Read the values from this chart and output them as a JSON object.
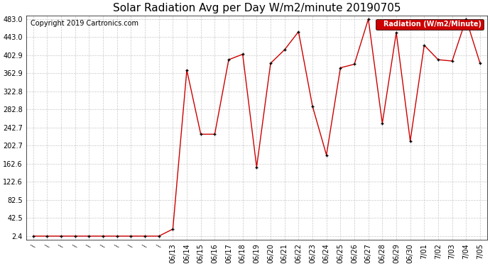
{
  "title": "Solar Radiation Avg per Day W/m2/minute 20190705",
  "copyright": "Copyright 2019 Cartronics.com",
  "legend_label": "Radiation (W/m2/Minute)",
  "slash_count": 10,
  "date_labels": [
    "06/13",
    "06/14",
    "06/15",
    "06/16",
    "06/17",
    "06/18",
    "06/19",
    "06/20",
    "06/21",
    "06/22",
    "06/23",
    "06/24",
    "06/25",
    "06/26",
    "06/27",
    "06/28",
    "06/29",
    "06/30",
    "7/01",
    "7/02",
    "7/03",
    "7/04",
    "7/05"
  ],
  "values_pre": [
    2.4,
    2.4,
    2.4,
    2.4,
    2.4,
    2.4,
    2.4,
    2.4,
    2.4,
    2.4
  ],
  "values_post": [
    18.0,
    370.0,
    228.0,
    228.0,
    393.0,
    405.0,
    155.0,
    385.0,
    415.0,
    455.0,
    290.0,
    182.0,
    375.0,
    383.0,
    483.0,
    252.0,
    453.0,
    213.0,
    425.0,
    393.0,
    390.0,
    483.0,
    385.0
  ],
  "yticks": [
    2.4,
    42.5,
    82.5,
    122.6,
    162.6,
    202.7,
    242.7,
    282.8,
    322.8,
    362.9,
    402.9,
    443.0,
    483.0
  ],
  "line_color": "#cc0000",
  "marker_color": "#000000",
  "background_color": "#ffffff",
  "grid_color": "#bbbbbb",
  "legend_bg": "#cc0000",
  "legend_text_color": "#ffffff",
  "title_fontsize": 11,
  "copyright_fontsize": 7,
  "tick_fontsize": 7,
  "ymin": 2.4,
  "ymax": 483.0
}
